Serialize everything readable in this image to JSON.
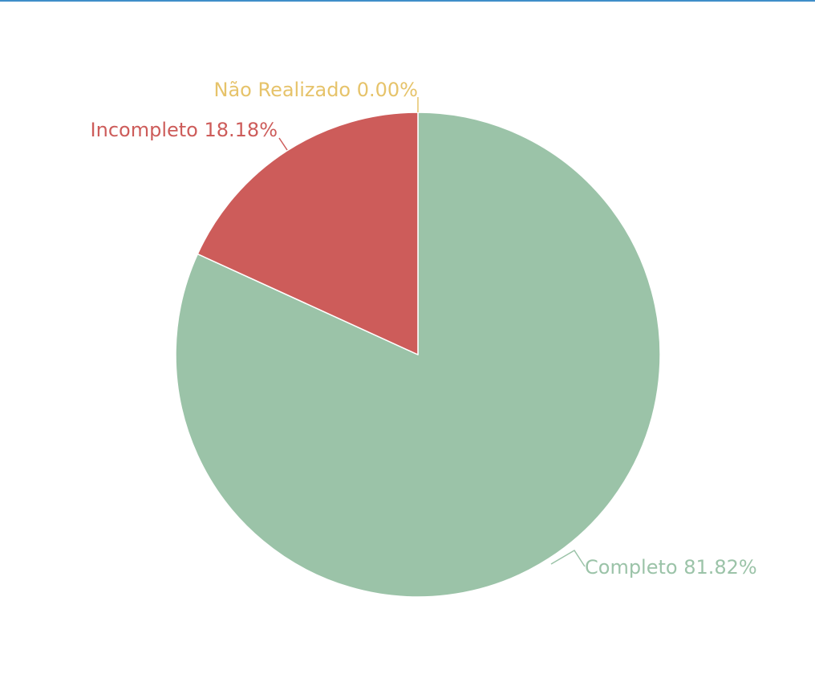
{
  "colors": {
    "top_rule": "#3f8ec9",
    "slice_border": "#ffffff",
    "background": "#ffffff"
  },
  "chart_data": {
    "type": "pie",
    "title": "",
    "legend": "none",
    "start_angle_deg": 0,
    "direction": "clockwise",
    "slices": [
      {
        "name": "Completo",
        "value": 81.82,
        "label": "Completo 81.82%",
        "color": "#9bc3a8",
        "icon": ""
      },
      {
        "name": "Não Realizado",
        "value": 0.0,
        "label": "Não Realizado 0.00%",
        "color": "#e6c36a",
        "icon": ""
      },
      {
        "name": "Incompleto",
        "value": 18.18,
        "label": "Incompleto 18.18%",
        "color": "#cd5c5a",
        "icon": ""
      }
    ]
  }
}
